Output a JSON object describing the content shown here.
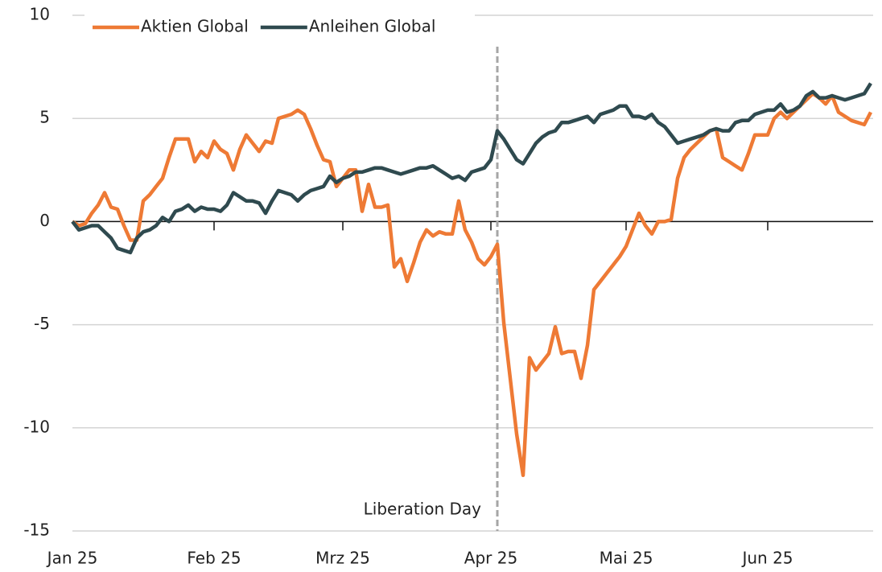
{
  "chart_data": {
    "type": "line",
    "categories": [
      "Jan 25",
      null,
      null,
      null,
      null,
      null,
      null,
      null,
      null,
      null,
      null,
      null,
      null,
      null,
      null,
      null,
      null,
      null,
      null,
      null,
      null,
      null,
      "Feb 25",
      null,
      null,
      null,
      null,
      null,
      null,
      null,
      null,
      null,
      null,
      null,
      null,
      null,
      null,
      null,
      null,
      null,
      null,
      null,
      "Mrz 25",
      null,
      null,
      null,
      null,
      null,
      null,
      null,
      null,
      null,
      null,
      null,
      null,
      null,
      null,
      null,
      null,
      null,
      null,
      null,
      null,
      null,
      null,
      "Apr 25",
      null,
      null,
      null,
      null,
      null,
      null,
      null,
      null,
      null,
      null,
      null,
      null,
      null,
      null,
      null,
      null,
      null,
      null,
      null,
      null,
      "Mai 25",
      null,
      null,
      null,
      null,
      null,
      null,
      null,
      null,
      null,
      null,
      null,
      null,
      null,
      null,
      null,
      null,
      null,
      null,
      null,
      null,
      null,
      "Jun 25",
      null,
      null,
      null,
      null,
      null,
      null,
      null,
      null,
      null,
      null,
      null,
      null,
      null,
      null,
      null,
      null
    ],
    "series": [
      {
        "name": "Aktien Global",
        "color": "#ee7a35",
        "values": [
          0,
          -0.2,
          -0.1,
          0.4,
          0.8,
          1.4,
          0.7,
          0.6,
          -0.2,
          -0.9,
          -0.9,
          1.0,
          1.3,
          1.7,
          2.1,
          3.1,
          4.0,
          4.0,
          4.0,
          2.9,
          3.4,
          3.1,
          3.9,
          3.5,
          3.3,
          2.5,
          3.5,
          4.2,
          3.8,
          3.4,
          3.9,
          3.8,
          5.0,
          5.1,
          5.2,
          5.4,
          5.2,
          4.5,
          3.7,
          3.0,
          2.9,
          1.7,
          2.1,
          2.5,
          2.5,
          0.5,
          1.8,
          0.7,
          0.7,
          0.8,
          -2.2,
          -1.8,
          -2.9,
          -2.0,
          -1.0,
          -0.4,
          -0.7,
          -0.5,
          -0.6,
          -0.6,
          1.0,
          -0.4,
          -1.0,
          -1.8,
          -2.1,
          -1.7,
          -1.1,
          -4.9,
          -7.6,
          -10.3,
          -12.3,
          -6.6,
          -7.2,
          -6.8,
          -6.4,
          -5.1,
          -6.4,
          -6.3,
          -6.3,
          -7.6,
          -6.0,
          -3.3,
          -2.9,
          -2.5,
          -2.1,
          -1.7,
          -1.2,
          -0.4,
          0.4,
          -0.2,
          -0.6,
          0,
          0,
          0.1,
          2.1,
          3.1,
          3.5,
          3.8,
          4.1,
          4.4,
          4.5,
          3.1,
          2.9,
          2.7,
          2.5,
          3.3,
          4.2,
          4.2,
          4.2,
          5.0,
          5.3,
          5.0,
          5.3,
          5.6,
          5.9,
          6.2,
          6.0,
          5.7,
          6.1,
          5.3,
          5.1,
          4.9,
          4.8,
          4.7,
          5.3
        ]
      },
      {
        "name": "Anleihen Global",
        "color": "#2f4a4f",
        "values": [
          0,
          -0.4,
          -0.3,
          -0.2,
          -0.2,
          -0.5,
          -0.8,
          -1.3,
          -1.4,
          -1.5,
          -0.8,
          -0.5,
          -0.4,
          -0.2,
          0.2,
          0.0,
          0.5,
          0.6,
          0.8,
          0.5,
          0.7,
          0.6,
          0.6,
          0.5,
          0.8,
          1.4,
          1.2,
          1.0,
          1.0,
          0.9,
          0.4,
          1.0,
          1.5,
          1.4,
          1.3,
          1.0,
          1.3,
          1.5,
          1.6,
          1.7,
          2.2,
          1.9,
          2.1,
          2.2,
          2.4,
          2.4,
          2.5,
          2.6,
          2.6,
          2.5,
          2.4,
          2.3,
          2.4,
          2.5,
          2.6,
          2.6,
          2.7,
          2.5,
          2.3,
          2.1,
          2.2,
          2.0,
          2.4,
          2.5,
          2.6,
          3.0,
          4.4,
          4.0,
          3.5,
          3.0,
          2.8,
          3.3,
          3.8,
          4.1,
          4.3,
          4.4,
          4.8,
          4.8,
          4.9,
          5.0,
          5.1,
          4.8,
          5.2,
          5.3,
          5.4,
          5.6,
          5.6,
          5.1,
          5.1,
          5.0,
          5.2,
          4.8,
          4.6,
          4.2,
          3.8,
          3.9,
          4.0,
          4.1,
          4.2,
          4.4,
          4.5,
          4.4,
          4.4,
          4.8,
          4.9,
          4.9,
          5.2,
          5.3,
          5.4,
          5.4,
          5.7,
          5.3,
          5.4,
          5.6,
          6.1,
          6.3,
          6.0,
          6.0,
          6.1,
          6.0,
          5.9,
          6.0,
          6.1,
          6.2,
          6.7
        ]
      }
    ],
    "ylim": [
      -15,
      10
    ],
    "yticks": [
      -15,
      -10,
      -5,
      0,
      5,
      10
    ],
    "grid": true,
    "legend": "upper left",
    "annotation": {
      "text": "Liberation Day",
      "index": 66
    }
  }
}
